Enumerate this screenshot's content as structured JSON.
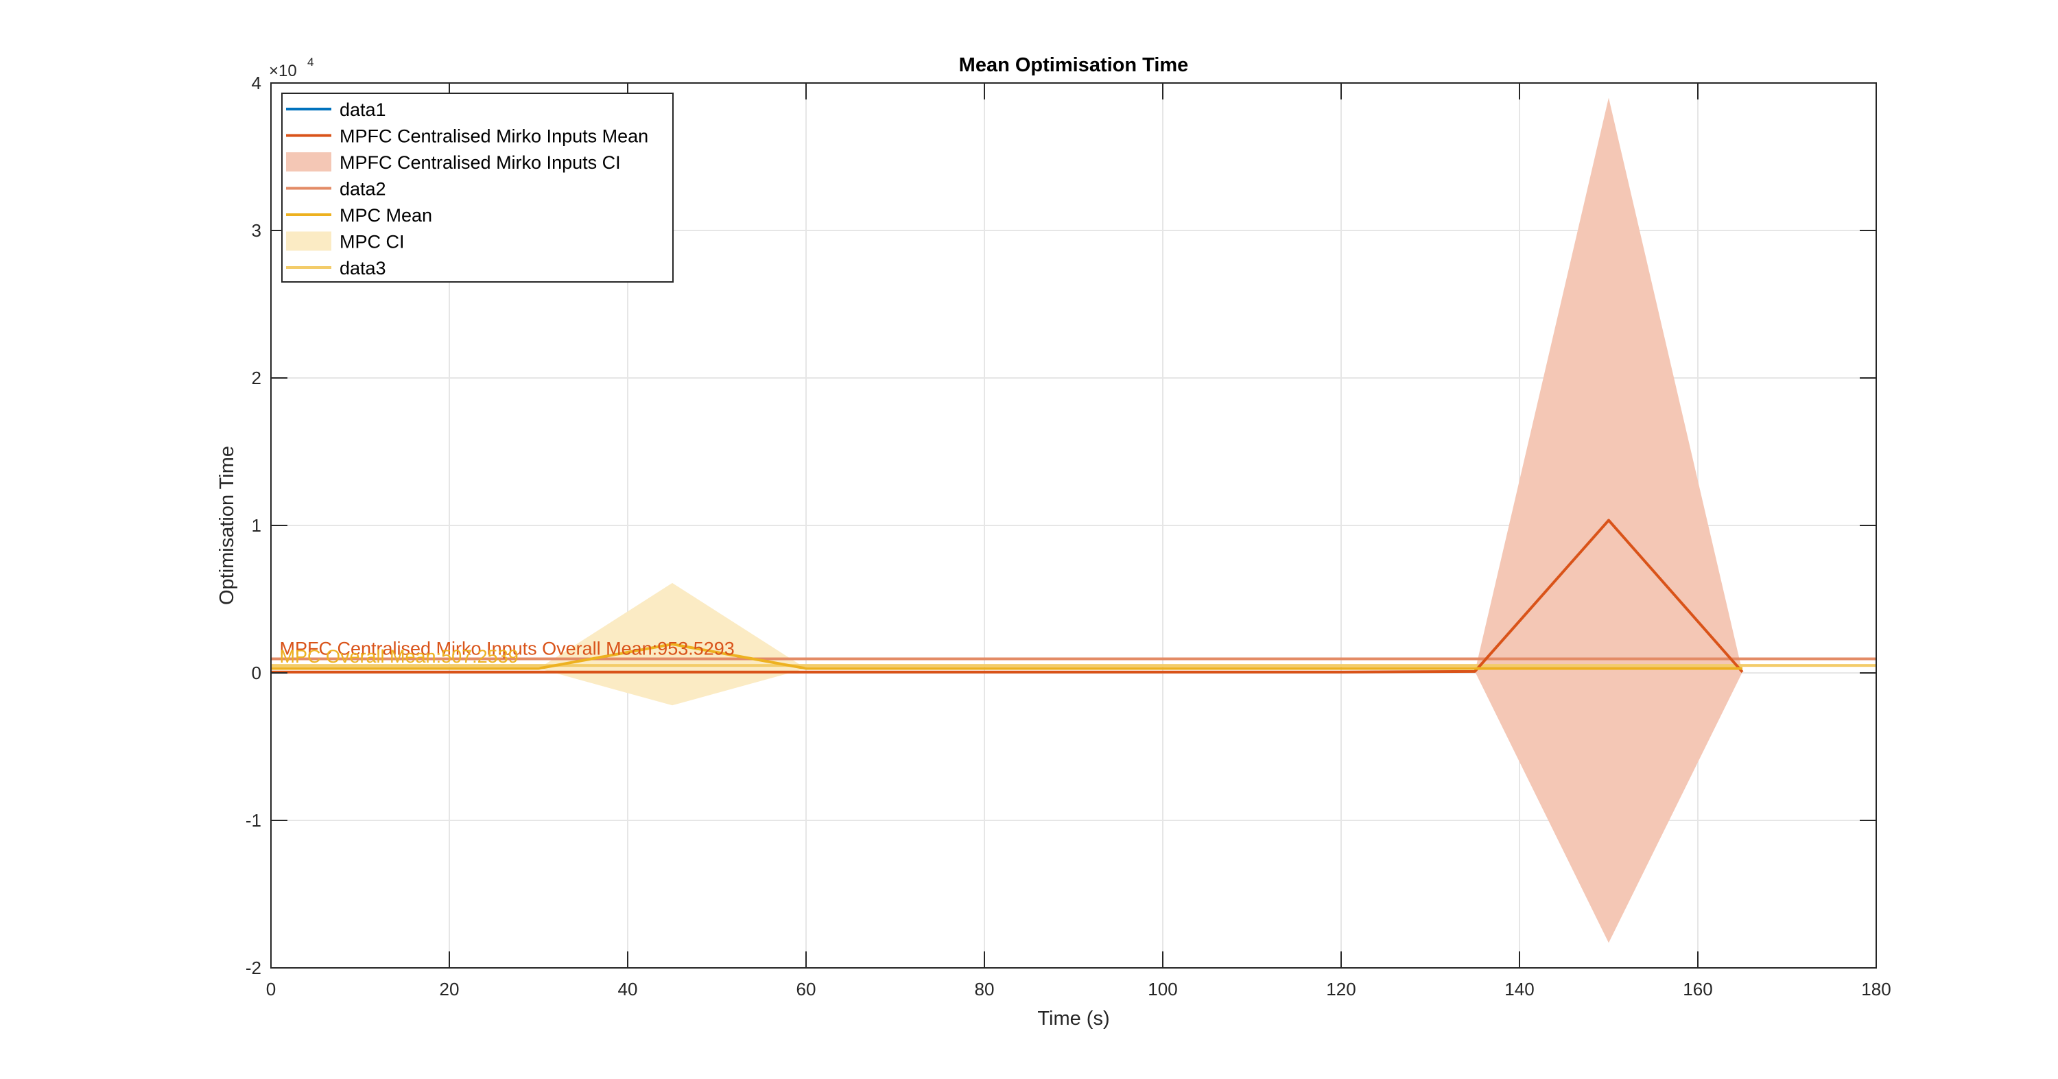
{
  "figure": {
    "title": "Mean Optimisation Time",
    "xlabel": "Time (s)",
    "ylabel": "Optimisation Time",
    "y_exponent_base": "×10",
    "y_exponent_power": "4"
  },
  "chart_data": {
    "type": "line",
    "title": "Mean Optimisation Time",
    "xlabel": "Time (s)",
    "ylabel": "Optimisation Time",
    "xlim": [
      0,
      180
    ],
    "ylim": [
      -20000,
      40000
    ],
    "y_multiplier": 10000,
    "grid": true,
    "legend_position": "top-left",
    "x_ticks": [
      0,
      20,
      40,
      60,
      80,
      100,
      120,
      140,
      160,
      180
    ],
    "y_ticks": [
      -2,
      -1,
      0,
      1,
      2,
      3,
      4
    ],
    "series": [
      {
        "name": "data1",
        "kind": "line",
        "color": "#0072BD",
        "x": [],
        "y": []
      },
      {
        "name": "MPFC Centralised Mirko Inputs Mean",
        "kind": "line",
        "color": "#D95319",
        "x": [
          0,
          15,
          30,
          45,
          60,
          75,
          90,
          105,
          120,
          135,
          150,
          165
        ],
        "y": [
          60,
          60,
          60,
          60,
          60,
          60,
          60,
          60,
          60,
          100,
          10350,
          60
        ]
      },
      {
        "name": "MPFC Centralised Mirko Inputs CI",
        "kind": "band",
        "color": "#F4C7B5",
        "x": [
          0,
          15,
          30,
          45,
          60,
          75,
          90,
          105,
          120,
          135,
          150,
          165
        ],
        "upper": [
          60,
          60,
          60,
          60,
          60,
          60,
          60,
          60,
          60,
          100,
          39000,
          60
        ],
        "lower": [
          60,
          60,
          60,
          60,
          60,
          60,
          60,
          60,
          60,
          100,
          -18300,
          60
        ]
      },
      {
        "name": "data2",
        "kind": "hline",
        "color": "#E38B66",
        "value": 953.5293
      },
      {
        "name": "MPC Mean",
        "kind": "line",
        "color": "#EDB120",
        "x": [
          0,
          15,
          30,
          45,
          60,
          75,
          90,
          105,
          120,
          135,
          150,
          165
        ],
        "y": [
          300,
          300,
          300,
          1950,
          300,
          300,
          300,
          300,
          300,
          300,
          300,
          300
        ]
      },
      {
        "name": "MPC CI",
        "kind": "band",
        "color": "#FBEBC4",
        "x": [
          0,
          15,
          30,
          45,
          60,
          75,
          90,
          105,
          120,
          135,
          150,
          165
        ],
        "upper": [
          300,
          300,
          300,
          6100,
          300,
          300,
          300,
          300,
          300,
          300,
          300,
          300
        ],
        "lower": [
          300,
          300,
          300,
          -2200,
          300,
          300,
          300,
          300,
          300,
          300,
          300,
          300
        ]
      },
      {
        "name": "data3",
        "kind": "hline",
        "color": "#F3CC6A",
        "value": 507.2539
      }
    ],
    "annotations": [
      {
        "text": "MPFC Centralised Mirko Inputs Overall Mean:953.5293",
        "x": 0.5,
        "y": 953.5293,
        "color": "#D95319"
      },
      {
        "text": "MPC Overall Mean:507.2539",
        "x": 0.5,
        "y": 507.2539,
        "color": "#EDB120"
      }
    ]
  }
}
